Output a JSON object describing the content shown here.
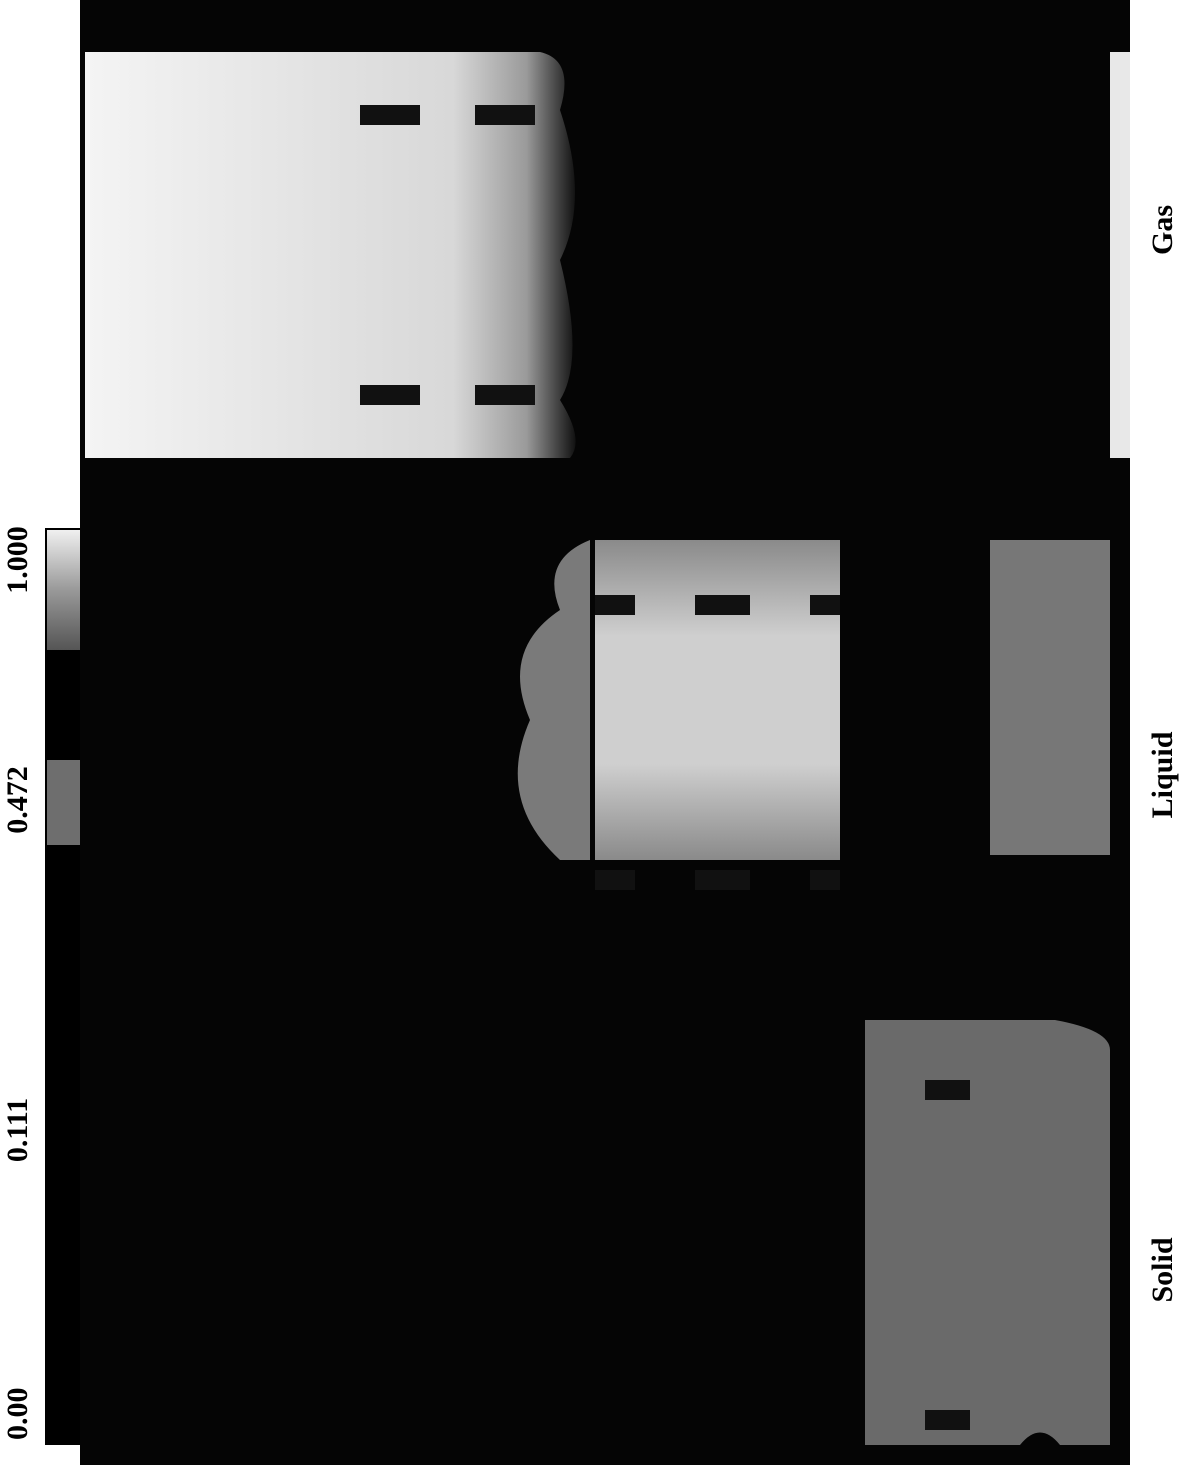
{
  "colorbar": {
    "tick_labels": [
      "0.00",
      "0.111",
      "0.472",
      "1.000"
    ]
  },
  "panels": [
    {
      "label": "Gas"
    },
    {
      "label": "Liquid"
    },
    {
      "label": "Solid"
    }
  ]
}
